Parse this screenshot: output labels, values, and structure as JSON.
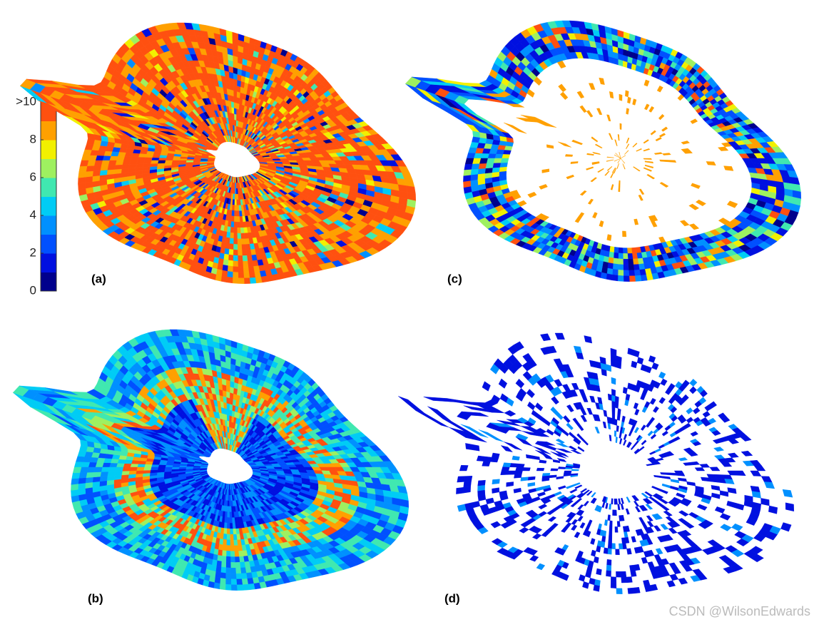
{
  "colorbar": {
    "lim": [
      0,
      10
    ],
    "ticks": [
      {
        "value": 10,
        "label": ">10"
      },
      8,
      6,
      4,
      2,
      0
    ],
    "colors": [
      "#00008c",
      "#0010e0",
      "#0050ff",
      "#0090ff",
      "#00ccf5",
      "#40e8b0",
      "#9ef060",
      "#f2f000",
      "#ffa000",
      "#ff5010"
    ]
  },
  "panels": [
    {
      "label": "(a)"
    },
    {
      "label": "(b)"
    },
    {
      "label": "(c)"
    },
    {
      "label": "(d)"
    }
  ],
  "watermark": "CSDN @WilsonEdwards"
}
